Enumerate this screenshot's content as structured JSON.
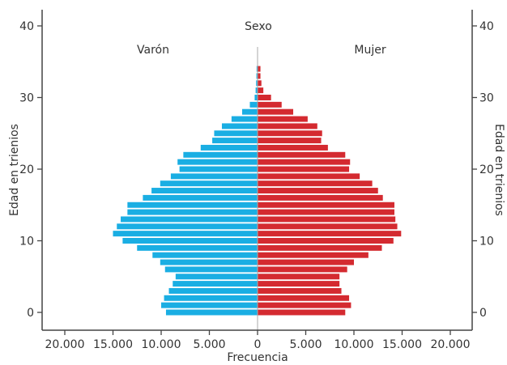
{
  "chart_data": {
    "type": "bar",
    "title": "Sexo",
    "xlabel": "Frecuencia",
    "ylabel": "Edad en trienios",
    "ylabel_right": "Edad en trienios",
    "x_tick_labels": [
      "20.000",
      "15.000",
      "10.000",
      "5.000",
      "0",
      "5.000",
      "10.000",
      "15.000",
      "20.000"
    ],
    "y_tick_labels": [
      "0",
      "10",
      "20",
      "30",
      "40"
    ],
    "xlim": [
      -20000,
      20000
    ],
    "ylim": [
      -1.5,
      42
    ],
    "grid": false,
    "series": [
      {
        "name": "Varón",
        "color": "#1aaee3",
        "side": "left",
        "ages": [
          0,
          1,
          2,
          3,
          4,
          5,
          6,
          7,
          8,
          9,
          10,
          11,
          12,
          13,
          14,
          15,
          16,
          17,
          18,
          19,
          20,
          21,
          22,
          23,
          24,
          25,
          26,
          27,
          28,
          29,
          30,
          31,
          32,
          33,
          34
        ],
        "values": [
          9500,
          10000,
          9700,
          9200,
          8800,
          8500,
          9600,
          10100,
          10900,
          12500,
          14000,
          15000,
          14600,
          14200,
          13500,
          13500,
          11900,
          11000,
          10100,
          9000,
          8100,
          8300,
          7700,
          5900,
          4700,
          4500,
          3700,
          2700,
          1600,
          800,
          300,
          200,
          150,
          120,
          100
        ]
      },
      {
        "name": "Mujer",
        "color": "#d42a30",
        "side": "right",
        "ages": [
          0,
          1,
          2,
          3,
          4,
          5,
          6,
          7,
          8,
          9,
          10,
          11,
          12,
          13,
          14,
          15,
          16,
          17,
          18,
          19,
          20,
          21,
          22,
          23,
          24,
          25,
          26,
          27,
          28,
          29,
          30,
          31,
          32,
          33,
          34
        ],
        "values": [
          9100,
          9700,
          9500,
          8700,
          8500,
          8500,
          9300,
          10000,
          11500,
          12900,
          14100,
          14900,
          14500,
          14300,
          14200,
          14200,
          13000,
          12500,
          11900,
          10600,
          9500,
          9600,
          9100,
          7300,
          6600,
          6700,
          6200,
          5200,
          3700,
          2500,
          1400,
          600,
          400,
          300,
          300
        ]
      }
    ]
  }
}
